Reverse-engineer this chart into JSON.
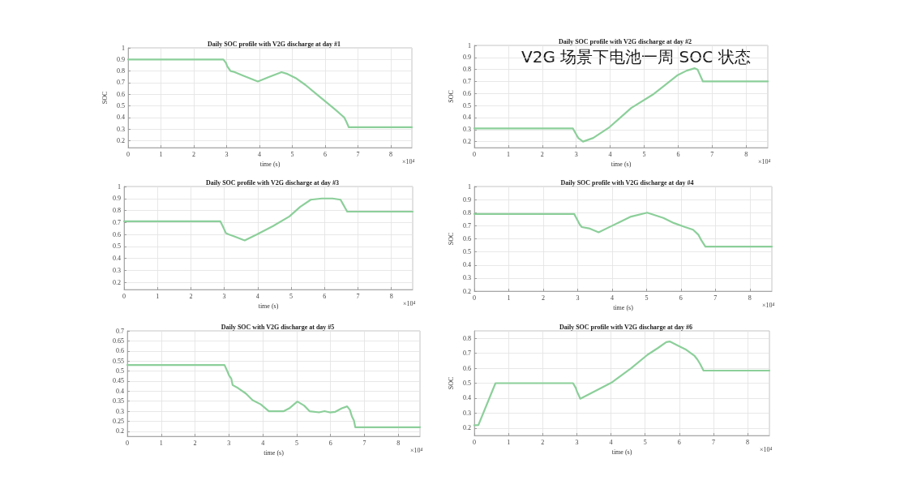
{
  "chart_data": [
    {
      "type": "line",
      "title": "Daily SOC profile with V2G discharge at day #1",
      "xlabel": "time (s)",
      "ylabel": "SOC",
      "color": "#8ccf9a",
      "x": [
        0,
        2.9,
        2.98,
        3.02,
        3.07,
        3.12,
        3.2,
        3.5,
        3.95,
        4.3,
        4.67,
        4.85,
        5.1,
        5.4,
        5.7,
        6.0,
        6.3,
        6.5,
        6.58,
        6.65,
        6.72,
        8.64
      ],
      "values": [
        0.9,
        0.9,
        0.87,
        0.84,
        0.82,
        0.8,
        0.795,
        0.76,
        0.71,
        0.75,
        0.79,
        0.775,
        0.74,
        0.68,
        0.61,
        0.54,
        0.47,
        0.42,
        0.4,
        0.36,
        0.315,
        0.315
      ],
      "xlim": [
        0,
        8.64
      ],
      "xticks": [
        0,
        1,
        2,
        3,
        4,
        5,
        6,
        7,
        8
      ],
      "ylim": [
        0.14,
        1
      ],
      "yticks": [
        0.2,
        0.3,
        0.4,
        0.5,
        0.6,
        0.7,
        0.8,
        0.9,
        1
      ],
      "grid": true,
      "annotations": [
        "×10⁴"
      ]
    },
    {
      "type": "line",
      "title": "Daily SOC profile with V2G discharge at day #2",
      "xlabel": "time (s)",
      "ylabel": "SOC",
      "color": "#8ccf9a",
      "x": [
        0,
        2.9,
        2.98,
        3.06,
        3.2,
        3.5,
        3.98,
        4.62,
        5.25,
        5.57,
        5.97,
        6.25,
        6.49,
        6.57,
        6.65,
        6.73,
        8.64
      ],
      "values": [
        0.31,
        0.31,
        0.27,
        0.23,
        0.2,
        0.23,
        0.32,
        0.48,
        0.59,
        0.66,
        0.75,
        0.79,
        0.81,
        0.8,
        0.75,
        0.7,
        0.7
      ],
      "xlim": [
        0,
        8.64
      ],
      "xticks": [
        0,
        1,
        2,
        3,
        4,
        5,
        6,
        7,
        8
      ],
      "ylim": [
        0.15,
        1
      ],
      "yticks": [
        0.2,
        0.3,
        0.4,
        0.5,
        0.6,
        0.7,
        0.8,
        0.9,
        1
      ],
      "grid": true,
      "annotations": [
        "V2G 场景下电池一周 SOC 状态",
        "×10⁴"
      ]
    },
    {
      "type": "line",
      "title": "Daily SOC profile with V2G discharge at day #3",
      "xlabel": "time (s)",
      "color": "#8ccf9a",
      "x": [
        0,
        2.88,
        2.97,
        3.05,
        3.13,
        3.33,
        3.61,
        3.98,
        4.46,
        4.95,
        5.27,
        5.59,
        5.92,
        6.24,
        6.48,
        6.56,
        6.68,
        8.64
      ],
      "values": [
        0.71,
        0.71,
        0.66,
        0.61,
        0.6,
        0.58,
        0.55,
        0.6,
        0.67,
        0.75,
        0.83,
        0.89,
        0.9,
        0.9,
        0.89,
        0.85,
        0.79,
        0.79
      ],
      "xlim": [
        0,
        8.64
      ],
      "xticks": [
        0,
        1,
        2,
        3,
        4,
        5,
        6,
        7,
        8
      ],
      "ylim": [
        0.14,
        1
      ],
      "yticks": [
        0.2,
        0.3,
        0.4,
        0.5,
        0.6,
        0.7,
        0.8,
        0.9,
        1
      ],
      "grid": true,
      "annotations": [
        "×10⁴"
      ]
    },
    {
      "type": "line",
      "title": "Daily SOC profile with V2G discharge at day #4",
      "xlabel": "time (s)",
      "ylabel": "SOC",
      "color": "#8ccf9a",
      "x": [
        0,
        2.9,
        2.98,
        3.06,
        3.12,
        3.33,
        3.61,
        4.0,
        4.55,
        5.02,
        5.49,
        5.8,
        6.12,
        6.35,
        6.51,
        6.59,
        6.71,
        8.64
      ],
      "values": [
        0.79,
        0.79,
        0.75,
        0.71,
        0.69,
        0.68,
        0.65,
        0.7,
        0.77,
        0.8,
        0.76,
        0.72,
        0.69,
        0.67,
        0.63,
        0.59,
        0.54,
        0.54
      ],
      "xlim": [
        0,
        8.64
      ],
      "xticks": [
        0,
        1,
        2,
        3,
        4,
        5,
        6,
        7,
        8
      ],
      "ylim": [
        0.2,
        1
      ],
      "yticks": [
        0.2,
        0.3,
        0.4,
        0.5,
        0.6,
        0.7,
        0.8,
        0.9,
        1
      ],
      "grid": true,
      "annotations": [
        "×10⁴"
      ]
    },
    {
      "type": "line",
      "title": "Daily SOC with V2G discharge at day #5",
      "xlabel": "time (s)",
      "color": "#8ccf9a",
      "x": [
        0,
        2.87,
        2.95,
        3.01,
        3.07,
        3.11,
        3.27,
        3.5,
        3.7,
        3.94,
        4.18,
        4.62,
        4.78,
        5.02,
        5.22,
        5.38,
        5.66,
        5.82,
        5.98,
        6.14,
        6.33,
        6.49,
        6.57,
        6.63,
        6.69,
        6.73,
        8.64
      ],
      "values": [
        0.53,
        0.53,
        0.5,
        0.476,
        0.462,
        0.43,
        0.415,
        0.388,
        0.355,
        0.334,
        0.3,
        0.3,
        0.314,
        0.348,
        0.328,
        0.3,
        0.294,
        0.3,
        0.294,
        0.297,
        0.314,
        0.324,
        0.307,
        0.274,
        0.254,
        0.22,
        0.22
      ],
      "xlim": [
        0,
        8.64
      ],
      "xticks": [
        0,
        1,
        2,
        3,
        4,
        5,
        6,
        7,
        8
      ],
      "ylim": [
        0.175,
        0.7
      ],
      "yticks": [
        0.2,
        0.25,
        0.3,
        0.35,
        0.4,
        0.45,
        0.5,
        0.55,
        0.6,
        0.65,
        0.7
      ],
      "grid": true,
      "annotations": [
        "×10⁴"
      ]
    },
    {
      "type": "line",
      "title": "Daily SOC profile with V2G discharge at day #6",
      "xlabel": "time (s)",
      "ylabel": "SOC",
      "color": "#8ccf9a",
      "x": [
        0,
        0.12,
        0.62,
        2.89,
        2.97,
        3.01,
        3.05,
        3.1,
        3.64,
        4.04,
        4.59,
        5.07,
        5.38,
        5.62,
        5.72,
        5.94,
        6.18,
        6.45,
        6.53,
        6.61,
        6.71,
        8.64
      ],
      "values": [
        0.218,
        0.22,
        0.5,
        0.5,
        0.468,
        0.441,
        0.423,
        0.396,
        0.459,
        0.507,
        0.6,
        0.69,
        0.736,
        0.775,
        0.779,
        0.754,
        0.727,
        0.682,
        0.659,
        0.629,
        0.584,
        0.584
      ],
      "xlim": [
        0,
        8.64
      ],
      "xticks": [
        0,
        1,
        2,
        3,
        4,
        5,
        6,
        7,
        8
      ],
      "ylim": [
        0.15,
        0.85
      ],
      "yticks": [
        0.2,
        0.3,
        0.4,
        0.5,
        0.6,
        0.7,
        0.8
      ],
      "grid": true,
      "annotations": [
        "×10⁴"
      ]
    }
  ]
}
